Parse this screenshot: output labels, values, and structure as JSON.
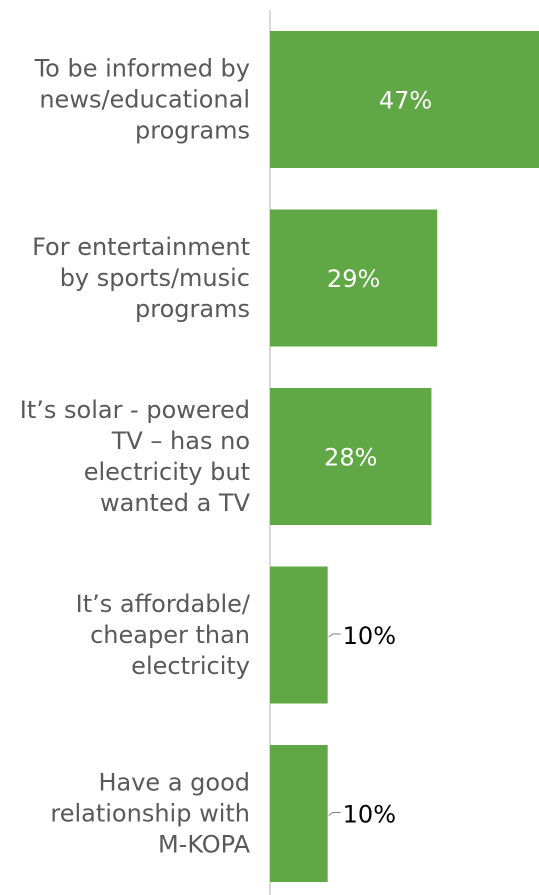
{
  "chart_data": {
    "type": "bar",
    "orientation": "horizontal",
    "categories": [
      [
        "To be informed by",
        "news/educational",
        "programs"
      ],
      [
        "For entertainment",
        "by sports/music",
        "programs"
      ],
      [
        "It’s solar - powered",
        "TV  – has no",
        "electricity but",
        "wanted a TV"
      ],
      [
        "It’s affordable/",
        "cheaper than",
        "electricity"
      ],
      [
        "Have a good",
        "relationship with",
        "M-KOPA"
      ]
    ],
    "values": [
      47,
      29,
      28,
      10,
      10
    ],
    "value_labels": [
      "47%",
      "29%",
      "28%",
      "10%",
      "10%"
    ],
    "xlim": [
      0,
      47
    ],
    "grid": false,
    "legend": "none",
    "colors": {
      "bar": "#5fa845",
      "axis": "#d9d9d9",
      "label_inside": "#ffffff",
      "label_outside": "#000000",
      "category_text": "#595959",
      "leader_line": "#808080"
    }
  }
}
